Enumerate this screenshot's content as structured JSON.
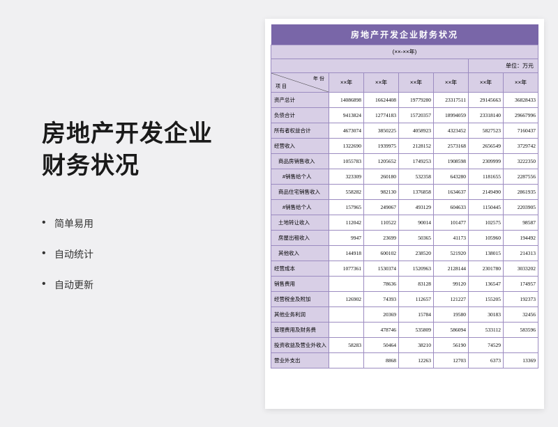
{
  "left": {
    "title_line1": "房地产开发企业",
    "title_line2": "财务状况",
    "features": [
      "简单易用",
      "自动统计",
      "自动更新"
    ]
  },
  "sheet": {
    "title": "房地产开发企业财务状况",
    "year_span": "(××-××年)",
    "unit": "单位：万元",
    "corner_year": "年 份",
    "corner_project": "项 目",
    "col_headers": [
      "××年",
      "××年",
      "××年",
      "××年",
      "××年",
      "××年"
    ],
    "title_bg": "#7966a8",
    "header_bg": "#d8cfe6",
    "border_color": "#9b8bc0",
    "cell_bg": "#ffffff",
    "rows": [
      {
        "label": "资产总计",
        "indent": 0,
        "v": [
          "14086898",
          "16624408",
          "19779280",
          "23317511",
          "29145663",
          "36828433"
        ]
      },
      {
        "label": "负债合计",
        "indent": 0,
        "v": [
          "9413824",
          "12774183",
          "15720357",
          "18994059",
          "23318140",
          "29667996"
        ]
      },
      {
        "label": "所有者权益合计",
        "indent": 0,
        "v": [
          "4673074",
          "3850225",
          "4058923",
          "4323452",
          "5827523",
          "7160437"
        ]
      },
      {
        "label": "经营收入",
        "indent": 0,
        "v": [
          "1322690",
          "1939975",
          "2128152",
          "2573168",
          "2656549",
          "3729742"
        ]
      },
      {
        "label": "商品房销售收入",
        "indent": 1,
        "v": [
          "1055783",
          "1205652",
          "1749253",
          "1908598",
          "2309999",
          "3222350"
        ]
      },
      {
        "label": "#销售给个人",
        "indent": 2,
        "v": [
          "323309",
          "260180",
          "532358",
          "643280",
          "1181655",
          "2287556"
        ]
      },
      {
        "label": "商品住宅销售收入",
        "indent": 1,
        "v": [
          "558282",
          "982130",
          "1376858",
          "1634637",
          "2149490",
          "2861935"
        ]
      },
      {
        "label": "#销售给个人",
        "indent": 2,
        "v": [
          "157965",
          "249067",
          "493129",
          "604633",
          "1150445",
          "2203905"
        ]
      },
      {
        "label": "土地转让收入",
        "indent": 1,
        "v": [
          "112042",
          "110522",
          "90014",
          "101477",
          "102575",
          "98587"
        ]
      },
      {
        "label": "房屋出租收入",
        "indent": 1,
        "v": [
          "9947",
          "23699",
          "50365",
          "41173",
          "105960",
          "194492"
        ]
      },
      {
        "label": "其他收入",
        "indent": 1,
        "v": [
          "144918",
          "600102",
          "238520",
          "521920",
          "138015",
          "214313"
        ]
      },
      {
        "label": "经营成本",
        "indent": 0,
        "v": [
          "1077361",
          "1530374",
          "1520963",
          "2128144",
          "2301780",
          "3033202"
        ]
      },
      {
        "label": "销售费用",
        "indent": 0,
        "v": [
          "",
          "78636",
          "83128",
          "99120",
          "136547",
          "174957"
        ]
      },
      {
        "label": "经营税金及附加",
        "indent": 0,
        "v": [
          "126902",
          "74393",
          "112657",
          "121227",
          "155205",
          "192373"
        ]
      },
      {
        "label": "其他业务利润",
        "indent": 0,
        "v": [
          "",
          "20369",
          "15784",
          "19580",
          "30183",
          "32456"
        ]
      },
      {
        "label": "管理费用及财务费",
        "indent": 0,
        "v": [
          "",
          "478746",
          "535809",
          "586094",
          "533112",
          "583596"
        ]
      },
      {
        "label": "投资收益及营业外收入",
        "indent": 0,
        "v": [
          "58283",
          "50464",
          "38210",
          "56190",
          "74529",
          ""
        ]
      },
      {
        "label": "营业外支出",
        "indent": 0,
        "v": [
          "",
          "8868",
          "12263",
          "12703",
          "6373",
          "13369"
        ]
      }
    ]
  }
}
